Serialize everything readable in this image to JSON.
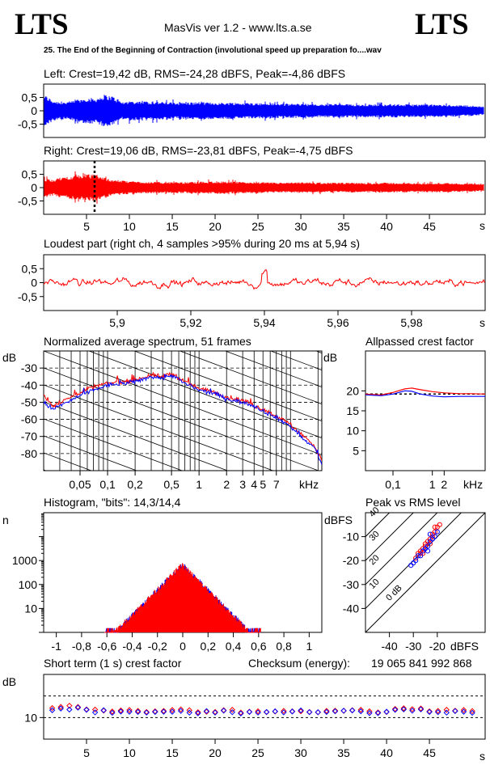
{
  "header": {
    "logo_left": "LTS",
    "logo_right": "LTS",
    "app_title": "MasVis ver 1.2 - www.lts.a.se",
    "track_title": "25. The End of the Beginning of Contraction (involutional speed up preparation fo....wav"
  },
  "colors": {
    "left": "#0000ff",
    "right": "#ff0000",
    "axis": "#000000"
  },
  "chart_data": [
    {
      "id": "left-waveform",
      "type": "line",
      "title": "Left: Crest=19,42 dB, RMS=-24,28 dBFS, Peak=-4,86 dBFS",
      "ylim": [
        -1,
        1
      ],
      "y_ticks": [
        0.5,
        0,
        -0.5
      ],
      "y_tick_labels": [
        "0,5",
        "0",
        "-0,5"
      ],
      "envelope_t": [
        0,
        1,
        2,
        3,
        4,
        5,
        6,
        7,
        8,
        9,
        10,
        12,
        14,
        16,
        18,
        20,
        22,
        24,
        26,
        28,
        30,
        32,
        34,
        36,
        38,
        40,
        42,
        44,
        46,
        48,
        50,
        51
      ],
      "envelope": [
        0.55,
        0.35,
        0.3,
        0.32,
        0.38,
        0.45,
        0.42,
        0.55,
        0.5,
        0.3,
        0.33,
        0.32,
        0.3,
        0.28,
        0.3,
        0.28,
        0.28,
        0.27,
        0.26,
        0.24,
        0.25,
        0.22,
        0.24,
        0.22,
        0.22,
        0.23,
        0.22,
        0.22,
        0.21,
        0.2,
        0.18,
        0.15
      ]
    },
    {
      "id": "right-waveform",
      "type": "line",
      "title": "Right: Crest=19,06 dB, RMS=-23,81 dBFS, Peak=-4,75 dBFS",
      "ylim": [
        -1,
        1
      ],
      "y_ticks": [
        0.5,
        0,
        -0.5
      ],
      "y_tick_labels": [
        "0,5",
        "0",
        "-0,5"
      ],
      "x_ticks": [
        5,
        10,
        15,
        20,
        25,
        30,
        35,
        40,
        45
      ],
      "x_tick_labels": [
        "5",
        "10",
        "15",
        "20",
        "25",
        "30",
        "35",
        "40",
        "45"
      ],
      "x_unit": "s",
      "marker_t": 5.94,
      "envelope_t": [
        0,
        1,
        2,
        3,
        4,
        5,
        6,
        7,
        8,
        9,
        10,
        12,
        14,
        16,
        18,
        20,
        22,
        24,
        26,
        28,
        30,
        32,
        34,
        36,
        38,
        40,
        42,
        44,
        46,
        48,
        50,
        51
      ],
      "envelope": [
        0.3,
        0.28,
        0.35,
        0.4,
        0.42,
        0.45,
        0.46,
        0.34,
        0.28,
        0.24,
        0.22,
        0.2,
        0.19,
        0.18,
        0.2,
        0.22,
        0.2,
        0.19,
        0.18,
        0.17,
        0.18,
        0.17,
        0.16,
        0.17,
        0.16,
        0.17,
        0.16,
        0.15,
        0.16,
        0.15,
        0.14,
        0.12
      ]
    },
    {
      "id": "loudest-part",
      "type": "line",
      "title": "Loudest part (right ch, 4 samples >95% during 20 ms at 5,94 s)",
      "xlim": [
        5.88,
        6.0
      ],
      "ylim": [
        -1,
        1
      ],
      "x_ticks": [
        5.9,
        5.92,
        5.94,
        5.96,
        5.98
      ],
      "x_tick_labels": [
        "5,9",
        "5,92",
        "5,94",
        "5,96",
        "5,98"
      ],
      "x_unit": "s",
      "y_ticks": [
        0.5,
        0,
        -0.5
      ],
      "y_tick_labels": [
        "0,5",
        "0",
        "-0,5"
      ]
    },
    {
      "id": "avg-spectrum",
      "type": "line",
      "title": "Normalized average spectrum, 51 frames",
      "ylabel": "dB",
      "xlim": [
        0.02,
        22
      ],
      "ylim": [
        -90,
        -20
      ],
      "x_scale": "log",
      "y_ticks": [
        -30,
        -40,
        -50,
        -60,
        -70,
        -80
      ],
      "y_tick_labels": [
        "-30",
        "-40",
        "-50",
        "-60",
        "-70",
        "-80"
      ],
      "x_ticks": [
        0.05,
        0.1,
        0.2,
        0.5,
        1,
        2,
        3,
        4,
        5,
        7
      ],
      "x_tick_labels": [
        "0,05",
        "0,1",
        "0,2",
        "0,5",
        "1",
        "2",
        "3",
        "4",
        "5",
        "7"
      ],
      "x_unit": "kHz",
      "series": [
        {
          "color": "#ff0000",
          "x": [
            0.02,
            0.025,
            0.03,
            0.04,
            0.05,
            0.07,
            0.1,
            0.15,
            0.2,
            0.3,
            0.4,
            0.5,
            0.7,
            1,
            1.5,
            2,
            3,
            4,
            5,
            7,
            10,
            14,
            18,
            22
          ],
          "y": [
            -46,
            -52,
            -50,
            -47,
            -44,
            -41,
            -39,
            -38,
            -37,
            -34,
            -35,
            -33,
            -38,
            -42,
            -44,
            -47,
            -49,
            -52,
            -54,
            -58,
            -63,
            -70,
            -75,
            -84
          ]
        },
        {
          "color": "#0000ff",
          "x": [
            0.02,
            0.025,
            0.03,
            0.04,
            0.05,
            0.07,
            0.1,
            0.15,
            0.2,
            0.3,
            0.4,
            0.5,
            0.7,
            1,
            1.5,
            2,
            3,
            4,
            5,
            7,
            10,
            14,
            18,
            22
          ],
          "y": [
            -50,
            -54,
            -52,
            -49,
            -46,
            -43,
            -40,
            -39,
            -38,
            -35,
            -36,
            -34,
            -39,
            -43,
            -45,
            -48,
            -50,
            -52,
            -55,
            -59,
            -64,
            -72,
            -76,
            -86
          ]
        }
      ]
    },
    {
      "id": "allpassed-crest",
      "type": "line",
      "title": "Allpassed crest factor",
      "ylabel": "dB",
      "xlim": [
        0.02,
        22
      ],
      "ylim": [
        0,
        30
      ],
      "x_scale": "log",
      "y_ticks": [
        20,
        15,
        10,
        5
      ],
      "y_tick_labels": [
        "20",
        "15",
        "10",
        "5"
      ],
      "x_ticks": [
        0.1,
        1,
        2
      ],
      "x_tick_labels": [
        "0,1",
        "1",
        "2"
      ],
      "x_unit": "kHz",
      "reference_line": 19.2,
      "series": [
        {
          "color": "#ff0000",
          "x": [
            0.02,
            0.05,
            0.1,
            0.2,
            0.3,
            0.5,
            1,
            2,
            5,
            10,
            22
          ],
          "y": [
            19.2,
            19.0,
            19.6,
            20.5,
            20.7,
            20.3,
            19.8,
            19.5,
            19.3,
            19.3,
            19.2
          ]
        },
        {
          "color": "#0000ff",
          "x": [
            0.02,
            0.05,
            0.1,
            0.2,
            0.3,
            0.5,
            1,
            2,
            5,
            10,
            22
          ],
          "y": [
            19.0,
            18.8,
            19.2,
            20.0,
            19.9,
            19.2,
            18.7,
            18.5,
            18.6,
            18.6,
            18.6
          ]
        }
      ]
    },
    {
      "id": "histogram",
      "type": "bar",
      "title": "Histogram, \"bits\": 14,3/14,4",
      "ylabel": "n",
      "xlim": [
        -1.1,
        1.1
      ],
      "ylim": [
        1,
        100000
      ],
      "y_scale": "log",
      "y_ticks": [
        1000,
        100,
        10
      ],
      "y_tick_labels": [
        "1000",
        "100",
        "10"
      ],
      "x_ticks": [
        -1,
        -0.8,
        -0.6,
        -0.4,
        -0.2,
        0,
        0.2,
        0.4,
        0.6,
        0.8,
        1
      ],
      "x_tick_labels": [
        "-1",
        "-0,8",
        "-0,6",
        "-0,4",
        "-0,2",
        "0",
        "0,2",
        "0,4",
        "0,6",
        "0,8",
        "1"
      ],
      "peak_count": 700,
      "width": 0.082
    },
    {
      "id": "peak-vs-rms",
      "type": "scatter",
      "title": "Peak vs RMS level",
      "ylabel": "dBFS",
      "xlabel": "dBFS",
      "xlim": [
        -50,
        0
      ],
      "ylim": [
        -50,
        0
      ],
      "y_ticks": [
        -10,
        -20,
        -30,
        -40
      ],
      "y_tick_labels": [
        "-10",
        "-20",
        "-30",
        "-40"
      ],
      "x_ticks": [
        -40,
        -30,
        -20
      ],
      "x_tick_labels": [
        "-40",
        "-30",
        "-20"
      ],
      "diagonals": [
        {
          "offset": 40,
          "label": "40"
        },
        {
          "offset": 30,
          "label": "30"
        },
        {
          "offset": 20,
          "label": "20"
        },
        {
          "offset": 10,
          "label": "10"
        },
        {
          "offset": 0,
          "label": "0 dB"
        }
      ],
      "series": [
        {
          "color": "#ff0000",
          "points": [
            [
              -29,
              -19
            ],
            [
              -28,
              -17
            ],
            [
              -27,
              -16
            ],
            [
              -26,
              -15
            ],
            [
              -25,
              -14
            ],
            [
              -24,
              -12
            ],
            [
              -23,
              -11
            ],
            [
              -22,
              -9
            ],
            [
              -21,
              -8
            ],
            [
              -20,
              -6
            ],
            [
              -19,
              -5
            ],
            [
              -27,
              -17
            ],
            [
              -25,
              -13
            ],
            [
              -23,
              -13
            ],
            [
              -22,
              -10
            ],
            [
              -21,
              -6
            ],
            [
              -26,
              -17
            ]
          ]
        },
        {
          "color": "#0000ff",
          "points": [
            [
              -30,
              -21
            ],
            [
              -29,
              -20
            ],
            [
              -28,
              -18
            ],
            [
              -27,
              -18
            ],
            [
              -26,
              -16
            ],
            [
              -25,
              -15
            ],
            [
              -24,
              -14
            ],
            [
              -23,
              -12
            ],
            [
              -22,
              -11
            ],
            [
              -21,
              -10
            ],
            [
              -20,
              -8
            ],
            [
              -24,
              -16
            ],
            [
              -23,
              -9
            ],
            [
              -31,
              -22
            ]
          ]
        }
      ]
    },
    {
      "id": "short-term-crest",
      "type": "scatter",
      "title": "Short term (1 s) crest factor",
      "checksum_label": "Checksum (energy):",
      "checksum_value": "19 065 841 992 868",
      "ylabel": "dB",
      "ylim": [
        0,
        30
      ],
      "y_ticks": [
        10
      ],
      "y_tick_labels": [
        "10"
      ],
      "dashed_lines": [
        20,
        10
      ],
      "x_ticks": [
        5,
        10,
        15,
        20,
        25,
        30,
        35,
        40,
        45
      ],
      "x_tick_labels": [
        "5",
        "10",
        "15",
        "20",
        "25",
        "30",
        "35",
        "40",
        "45"
      ],
      "x_unit": "s",
      "series": [
        {
          "color": "#ff0000",
          "values": [
            14.4,
            14.9,
            15.5,
            14.9,
            13.8,
            13.7,
            13.2,
            12.8,
            13.3,
            13.5,
            13.1,
            12.6,
            12.9,
            13.1,
            13.5,
            13.8,
            13.4,
            12.5,
            12.7,
            12.6,
            13.4,
            13.6,
            12.3,
            12.7,
            12.9,
            12.5,
            12.8,
            13.1,
            12.9,
            12.9,
            12.6,
            12.4,
            13.1,
            13.2,
            13.1,
            13.4,
            13.6,
            12.9,
            12.4,
            12.6,
            14.0,
            14.3,
            13.9,
            14.2,
            12.9,
            13.1,
            13.6,
            13.2,
            13.5,
            13.0
          ]
        },
        {
          "color": "#0000ff",
          "values": [
            13.4,
            14.2,
            13.7,
            14.6,
            13.6,
            12.4,
            13.4,
            12.2,
            12.8,
            12.7,
            12.6,
            12.3,
            12.6,
            12.7,
            12.7,
            13.1,
            12.3,
            12.0,
            13.0,
            12.3,
            13.2,
            12.5,
            11.9,
            12.6,
            12.3,
            12.6,
            12.9,
            12.4,
            12.8,
            13.3,
            12.5,
            12.5,
            12.6,
            12.9,
            13.2,
            13.3,
            12.9,
            12.1,
            12.1,
            12.7,
            13.6,
            13.8,
            13.2,
            13.8,
            12.6,
            12.5,
            12.3,
            13.0,
            12.7,
            12.2
          ]
        }
      ]
    }
  ]
}
